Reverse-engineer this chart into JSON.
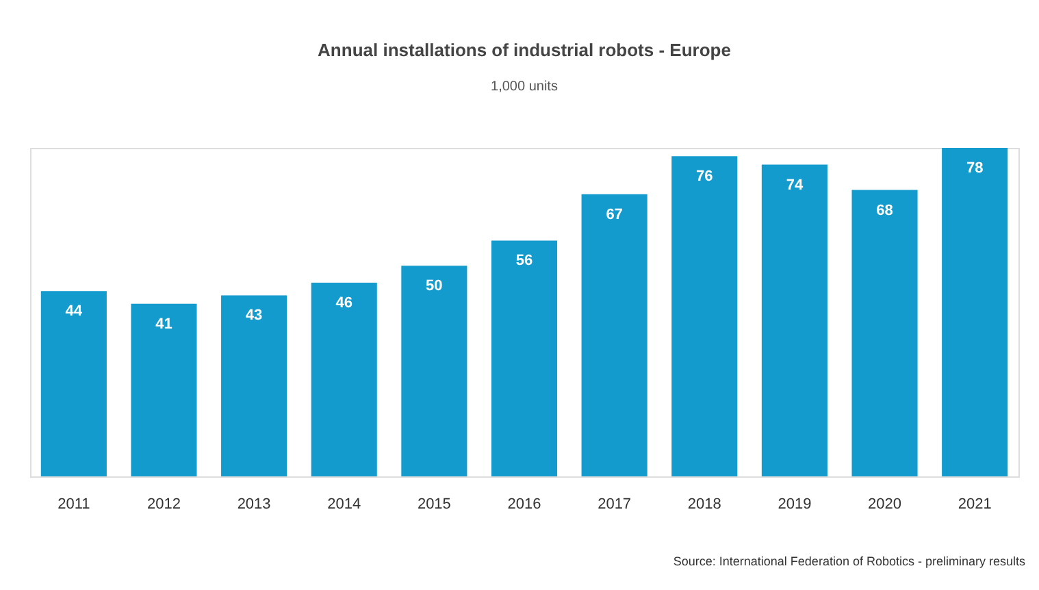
{
  "chart_data": {
    "type": "bar",
    "title": "Annual installations of industrial robots - Europe",
    "subtitle": "1,000 units",
    "categories": [
      "2011",
      "2012",
      "2013",
      "2014",
      "2015",
      "2016",
      "2017",
      "2018",
      "2019",
      "2020",
      "2021"
    ],
    "values": [
      44,
      41,
      43,
      46,
      50,
      56,
      67,
      76,
      74,
      68,
      78
    ],
    "color": "#129bcc",
    "data_labels": true,
    "annotations": [
      "Source: International Federation of Robotics - preliminary results"
    ]
  }
}
